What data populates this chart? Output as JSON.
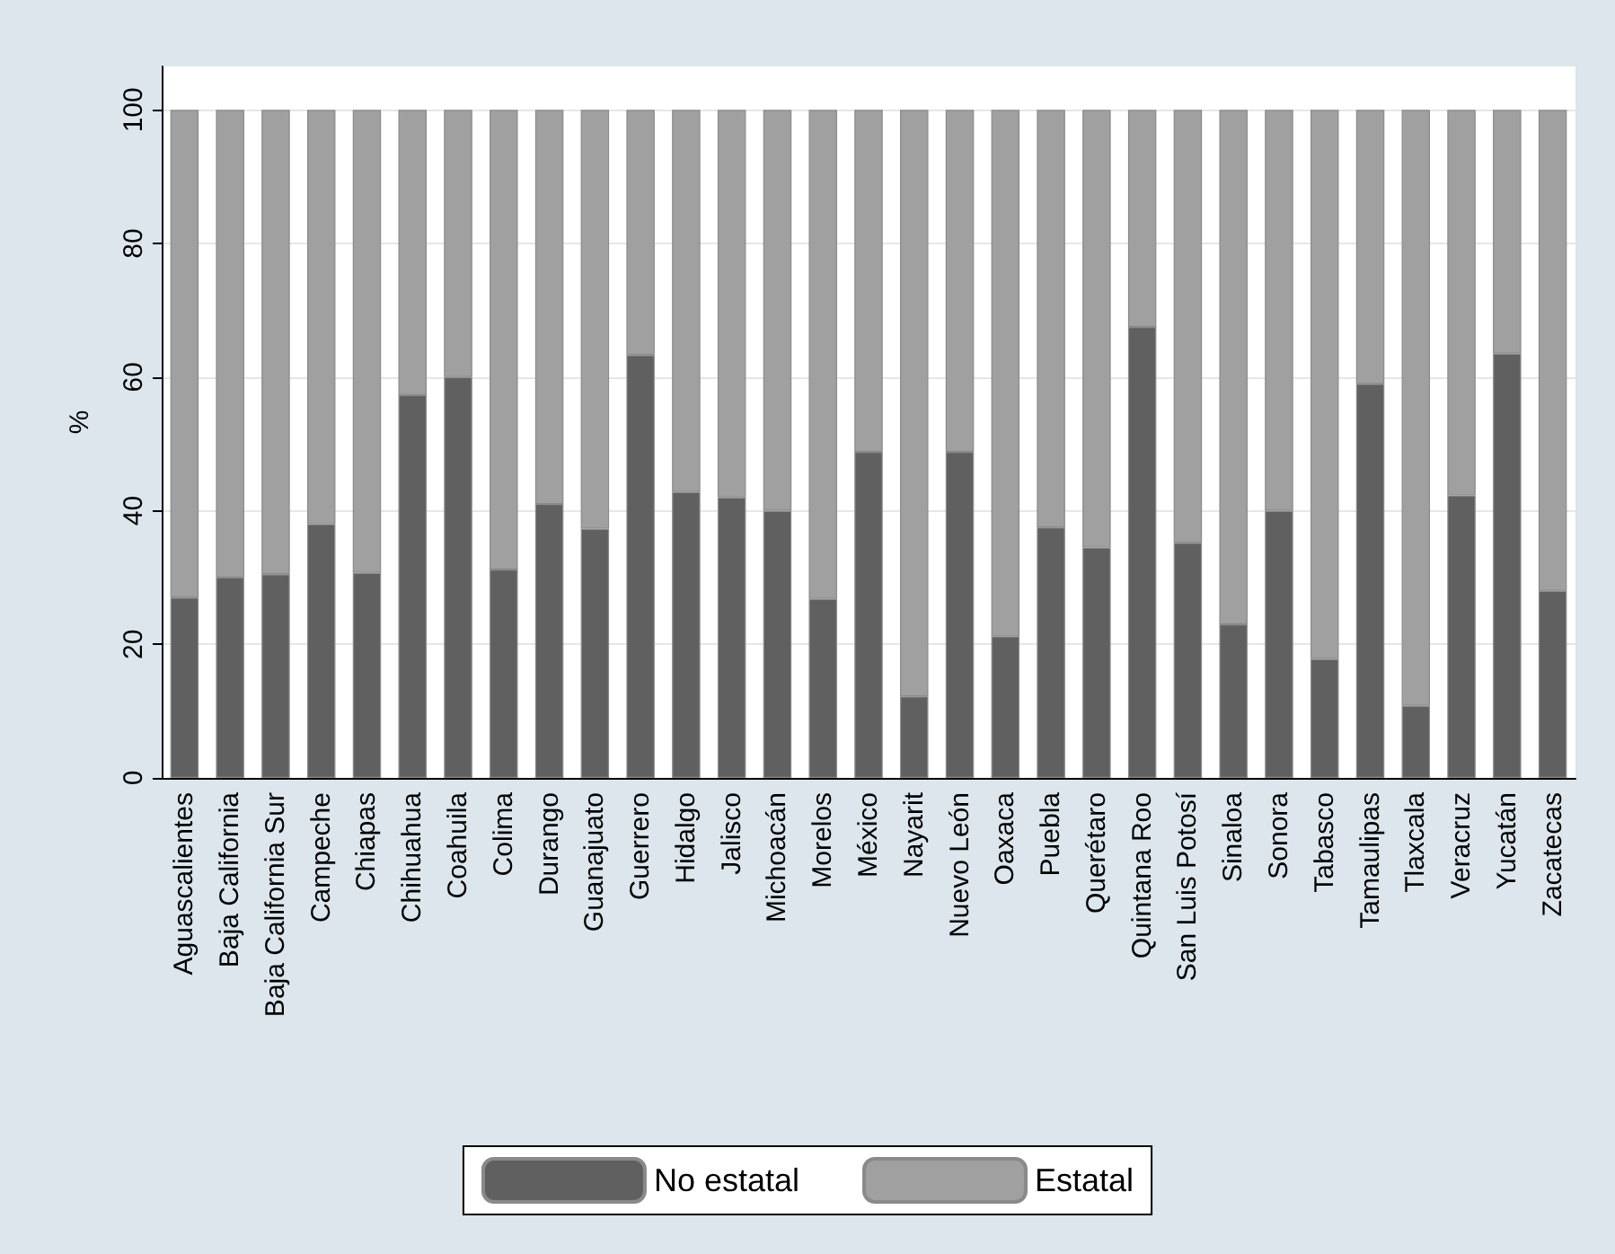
{
  "chart_data": {
    "type": "bar",
    "stacked": true,
    "ylabel": "%",
    "categories": [
      "Aguascalientes",
      "Baja California",
      "Baja California Sur",
      "Campeche",
      "Chiapas",
      "Chihuahua",
      "Coahuila",
      "Colima",
      "Durango",
      "Guanajuato",
      "Guerrero",
      "Hidalgo",
      "Jalisco",
      "Michoacán",
      "Morelos",
      "México",
      "Nayarit",
      "Nuevo León",
      "Oaxaca",
      "Puebla",
      "Querétaro",
      "Quintana Roo",
      "San Luis Potosí",
      "Sinaloa",
      "Sonora",
      "Tabasco",
      "Tamaulipas",
      "Tlaxcala",
      "Veracruz",
      "Yucatán",
      "Zacatecas"
    ],
    "series": [
      {
        "name": "No estatal",
        "color": "#606060",
        "values": [
          27,
          30,
          30.5,
          38,
          30.7,
          57.3,
          60,
          31.2,
          41,
          37.3,
          63.3,
          42.8,
          42,
          40,
          26.8,
          48.8,
          12.2,
          48.8,
          21.2,
          37.5,
          34.5,
          67.5,
          35.2,
          23,
          40,
          17.8,
          59,
          10.8,
          42.3,
          63.5,
          28
        ]
      },
      {
        "name": "Estatal",
        "color": "#a0a0a0",
        "values": [
          73,
          70,
          69.5,
          62,
          69.3,
          42.7,
          40,
          68.8,
          59,
          62.7,
          36.7,
          57.2,
          58,
          60,
          73.2,
          51.2,
          87.8,
          51.2,
          78.8,
          62.5,
          65.5,
          32.5,
          64.8,
          77,
          60,
          82.2,
          41,
          89.2,
          57.7,
          36.5,
          72
        ]
      }
    ],
    "ylim": [
      0,
      106.5
    ],
    "yticks": [
      0,
      20,
      40,
      60,
      80,
      100
    ],
    "grid": "y",
    "legend": "bottom"
  }
}
